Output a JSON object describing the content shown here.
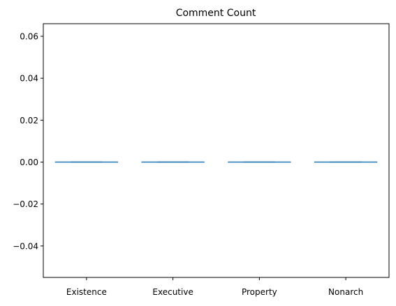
{
  "chart_data": {
    "type": "box",
    "title": "Comment Count",
    "xlabel": "",
    "ylabel": "",
    "categories": [
      "Existence",
      "Executive",
      "Property",
      "Nonarch"
    ],
    "values": [
      0,
      0,
      0,
      0
    ],
    "ylim": [
      -0.055,
      0.066
    ],
    "yticks": [
      -0.04,
      -0.02,
      0.0,
      0.02,
      0.04,
      0.06
    ],
    "ytick_labels": [
      "−0.04",
      "−0.02",
      "0.00",
      "0.02",
      "0.04",
      "0.06"
    ],
    "grid": false,
    "legend": "none",
    "color": "#1f77b4"
  }
}
